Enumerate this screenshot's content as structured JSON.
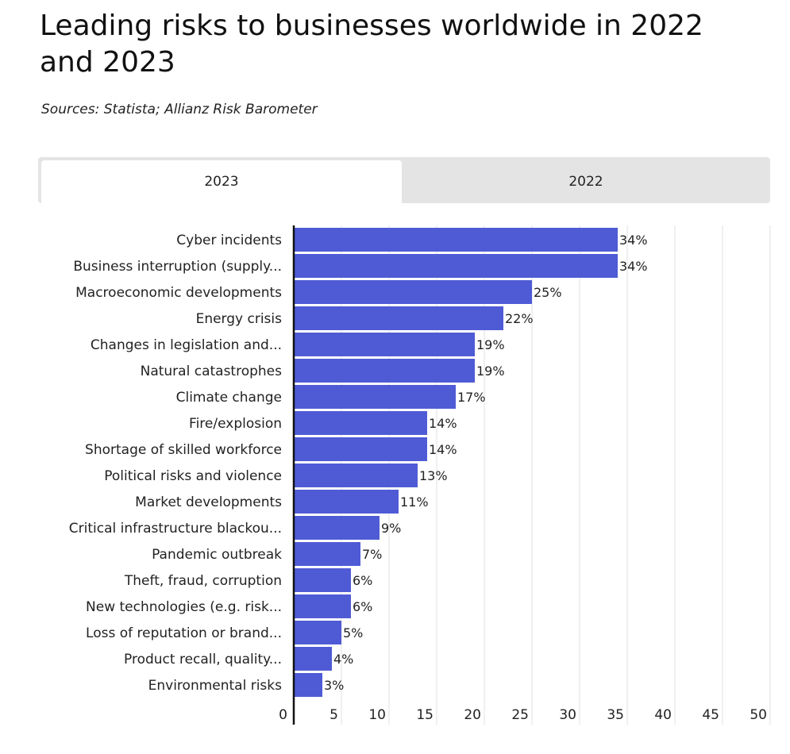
{
  "header": {
    "title": "Leading risks to businesses worldwide in 2022 and 2023",
    "source": "Sources: Statista; Allianz Risk Barometer"
  },
  "tabs": [
    {
      "label": "2023",
      "active": true
    },
    {
      "label": "2022",
      "active": false
    }
  ],
  "colors": {
    "bar": "#4f5bd5",
    "grid": "#e2e2e2",
    "axis": "#111111",
    "tab_bg": "#e4e4e4",
    "tab_active": "#ffffff"
  },
  "chart_data": {
    "type": "bar",
    "orientation": "horizontal",
    "title": "",
    "xlabel": "",
    "ylabel": "",
    "xlim": [
      0,
      50
    ],
    "ticks": [
      0,
      5,
      10,
      15,
      20,
      25,
      30,
      35,
      40,
      45,
      50
    ],
    "grid": true,
    "value_suffix": "%",
    "categories": [
      "Cyber incidents",
      "Business interruption (supply...",
      "Macroeconomic developments",
      "Energy crisis",
      "Changes in legislation and...",
      "Natural catastrophes",
      "Climate change",
      "Fire/explosion",
      "Shortage of skilled workforce",
      "Political risks and violence",
      "Market developments",
      "Critical infrastructure blackou...",
      "Pandemic outbreak",
      "Theft, fraud, corruption",
      "New technologies (e.g. risk...",
      "Loss of reputation or brand...",
      "Product recall, quality...",
      "Environmental risks"
    ],
    "values": [
      34,
      34,
      25,
      22,
      19,
      19,
      17,
      14,
      14,
      13,
      11,
      9,
      7,
      6,
      6,
      5,
      4,
      3
    ],
    "series": [
      {
        "name": "2023",
        "values": [
          34,
          34,
          25,
          22,
          19,
          19,
          17,
          14,
          14,
          13,
          11,
          9,
          7,
          6,
          6,
          5,
          4,
          3
        ]
      }
    ]
  }
}
